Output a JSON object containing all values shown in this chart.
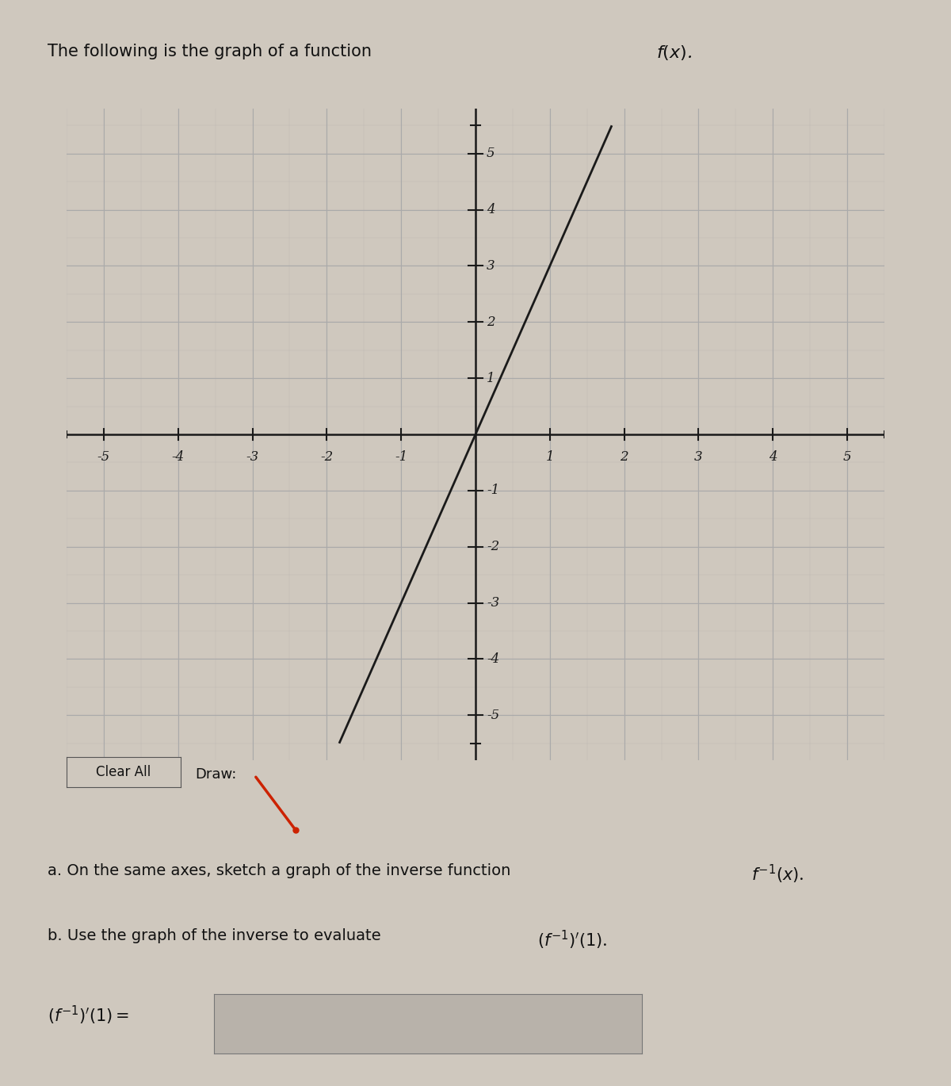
{
  "xlim": [
    -5.5,
    5.5
  ],
  "ylim": [
    -5.8,
    5.8
  ],
  "xticks": [
    -5,
    -4,
    -3,
    -2,
    -1,
    1,
    2,
    3,
    4,
    5
  ],
  "yticks": [
    -5,
    -4,
    -3,
    -2,
    -1,
    1,
    2,
    3,
    4,
    5
  ],
  "line_x": [
    -1.667,
    1.0
  ],
  "line_y": [
    -5,
    3.0
  ],
  "line_color": "#1a1a1a",
  "line_width": 1.8,
  "grid_color": "#aaaaaa",
  "grid_linewidth": 0.5,
  "bg_color": "#cfc8be",
  "axis_color": "#1a1a1a",
  "fig_width": 12.0,
  "fig_height": 13.7,
  "pencil_color": "#cc2200"
}
